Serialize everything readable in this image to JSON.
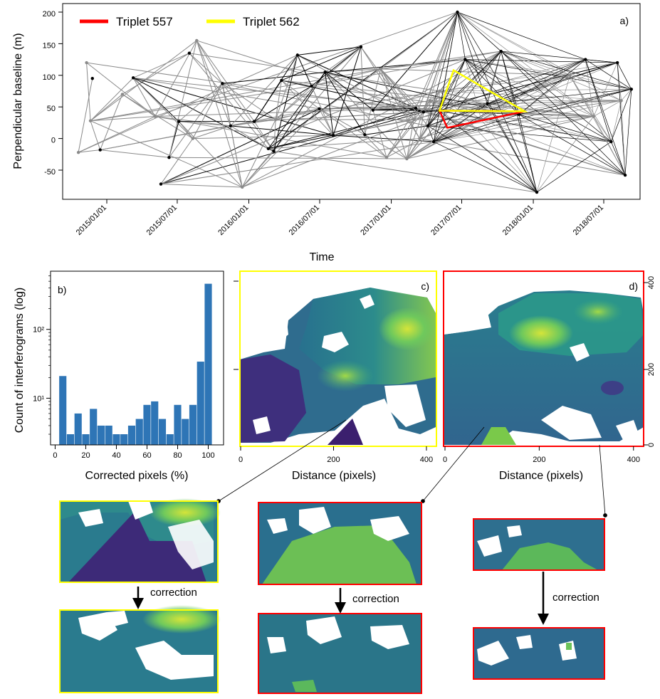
{
  "chart_data": [
    {
      "panel": "a)",
      "type": "scatter",
      "ylabel": "Perpendicular baseline (m)",
      "xlabel": "Time",
      "yticks": [
        200,
        150,
        100,
        50,
        0,
        -50
      ],
      "yticklabels": [
        "200",
        "150",
        "100",
        "50",
        "0",
        "-50"
      ],
      "xticks": [
        "2015/01/01",
        "2015/07/01",
        "2016/01/01",
        "2016/07/01",
        "2017/01/01",
        "2017/07/01",
        "2018/01/01",
        "2018/07/01"
      ],
      "ylim": [
        -88,
        205
      ],
      "legend": [
        {
          "name": "Triplet 557",
          "color": "#ff0000"
        },
        {
          "name": "Triplet 562",
          "color": "#ffff00"
        }
      ],
      "gray_points": [
        [
          "2014-10-20",
          -22
        ],
        [
          "2014-11-10",
          120
        ],
        [
          "2014-11-20",
          28
        ],
        [
          "2015-02-10",
          70
        ],
        [
          "2015-05-05",
          35
        ],
        [
          "2015-08-20",
          155
        ],
        [
          "2015-08-10",
          0
        ],
        [
          "2015-12-15",
          -77
        ],
        [
          "2016-03-10",
          30
        ],
        [
          "2016-12-05",
          110
        ],
        [
          "2016-12-20",
          -30
        ],
        [
          "2017-02-10",
          -32
        ],
        [
          "2017-03-01",
          30
        ],
        [
          "2017-03-15",
          0
        ],
        [
          "2017-04-10",
          60
        ],
        [
          "2017-05-05",
          75
        ],
        [
          "2017-08-20",
          30
        ],
        [
          "2018-04-05",
          100
        ],
        [
          "2018-06-05",
          35
        ],
        [
          "2018-08-15",
          60
        ]
      ],
      "black_points": [
        [
          "2014-11-25",
          95
        ],
        [
          "2014-12-15",
          -18
        ],
        [
          "2015-03-10",
          96
        ],
        [
          "2015-05-20",
          -72
        ],
        [
          "2015-06-10",
          -30
        ],
        [
          "2015-07-05",
          27
        ],
        [
          "2015-08-01",
          135
        ],
        [
          "2015-10-25",
          87
        ],
        [
          "2015-11-15",
          20
        ],
        [
          "2016-01-15",
          27
        ],
        [
          "2016-02-20",
          -16
        ],
        [
          "2016-03-05",
          -20
        ],
        [
          "2016-03-25",
          92
        ],
        [
          "2016-05-05",
          132
        ],
        [
          "2016-06-10",
          83
        ],
        [
          "2016-06-30",
          47
        ],
        [
          "2016-07-15",
          105
        ],
        [
          "2016-08-05",
          5
        ],
        [
          "2016-10-15",
          145
        ],
        [
          "2016-10-25",
          6
        ],
        [
          "2016-11-15",
          45
        ],
        [
          "2017-03-05",
          48
        ],
        [
          "2017-03-25",
          42
        ],
        [
          "2017-04-05",
          20
        ],
        [
          "2017-04-20",
          -5
        ],
        [
          "2017-05-05",
          44
        ],
        [
          "2017-06-20",
          200
        ],
        [
          "2017-07-10",
          125
        ],
        [
          "2017-09-05",
          55
        ],
        [
          "2017-10-10",
          138
        ],
        [
          "2017-11-25",
          38
        ],
        [
          "2018-01-10",
          -85
        ],
        [
          "2018-05-15",
          125
        ],
        [
          "2018-07-20",
          -5
        ],
        [
          "2018-08-05",
          120
        ],
        [
          "2018-08-25",
          -58
        ],
        [
          "2018-09-10",
          78
        ]
      ],
      "triplet_557": [
        [
          "2017-05-05",
          44
        ],
        [
          "2017-05-25",
          17
        ],
        [
          "2017-12-10",
          43
        ]
      ],
      "triplet_562": [
        [
          "2017-05-05",
          44
        ],
        [
          "2017-06-10",
          108
        ],
        [
          "2017-12-10",
          43
        ]
      ]
    },
    {
      "panel": "b)",
      "type": "bar",
      "xlabel": "Corrected pixels (%)",
      "ylabel": "Count of interferograms (log)",
      "log_y": true,
      "ylim": [
        2.1,
        700
      ],
      "yticklabels": [
        "10²",
        "10¹"
      ],
      "xticks": [
        0,
        20,
        40,
        60,
        80,
        100
      ],
      "bin_edges": [
        2.5,
        7.5,
        12.5,
        17.5,
        22.5,
        27.5,
        32.5,
        37.5,
        42.5,
        47.5,
        52.5,
        57.5,
        62.5,
        67.5,
        72.5,
        77.5,
        82.5,
        87.5,
        92.5,
        97.5,
        102.5
      ],
      "values": [
        21,
        3,
        6,
        3,
        7,
        4,
        4,
        3,
        3,
        4,
        5,
        8,
        9,
        5,
        3,
        8,
        5,
        8,
        34,
        460
      ],
      "color": "#2e75b6"
    },
    {
      "panel": "c)",
      "type": "heatmap",
      "xlabel": "Distance (pixels)",
      "xticks": [
        0,
        200,
        400
      ],
      "frame_color": "#ffff00"
    },
    {
      "panel": "d)",
      "type": "heatmap",
      "xlabel": "Distance (pixels)",
      "xticks": [
        0,
        200,
        400
      ],
      "yticks": [
        "0",
        "200",
        "400"
      ],
      "frame_color": "#ff0000"
    }
  ],
  "annotations": {
    "correction_label": "correction"
  }
}
